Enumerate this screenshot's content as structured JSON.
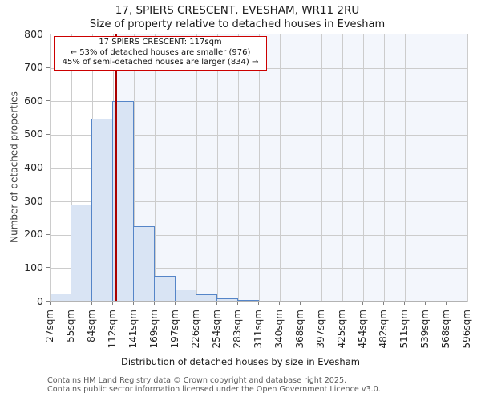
{
  "page": {
    "title": "17, SPIERS CRESCENT, EVESHAM, WR11 2RU",
    "subtitle": "Size of property relative to detached houses in Evesham"
  },
  "annotation": {
    "line1": "17 SPIERS CRESCENT: 117sqm",
    "line2": "← 53% of detached houses are smaller (976)",
    "line3": "45% of semi-detached houses are larger (834) →"
  },
  "chart_data": {
    "type": "bar",
    "title": "17, SPIERS CRESCENT, EVESHAM, WR11 2RU",
    "subtitle": "Size of property relative to detached houses in Evesham",
    "xlabel": "Distribution of detached houses by size in Evesham",
    "ylabel": "Number of detached properties",
    "ylim": [
      0,
      800
    ],
    "ytick_step": 100,
    "grid": true,
    "legend": "none",
    "bin_edges_sqm": [
      27,
      55,
      84,
      112,
      141,
      169,
      197,
      226,
      254,
      283,
      311,
      340,
      368,
      397,
      425,
      454,
      482,
      511,
      539,
      568,
      596
    ],
    "x_tick_labels": [
      "27sqm",
      "55sqm",
      "84sqm",
      "112sqm",
      "141sqm",
      "169sqm",
      "197sqm",
      "226sqm",
      "254sqm",
      "283sqm",
      "311sqm",
      "340sqm",
      "368sqm",
      "397sqm",
      "425sqm",
      "454sqm",
      "482sqm",
      "511sqm",
      "539sqm",
      "568sqm",
      "596sqm"
    ],
    "values": [
      25,
      290,
      548,
      600,
      225,
      78,
      35,
      22,
      9,
      5,
      3,
      0,
      0,
      0,
      0,
      0,
      0,
      0,
      0,
      0
    ],
    "marker_sqm": 117
  },
  "colors": {
    "bar_fill": "#d9e4f4",
    "bar_edge": "#5585c8",
    "marker_line": "#aa0000",
    "annotation_border": "#cc0000",
    "shade_right_of_marker": "#f3f6fc",
    "gridline": "#cccccc"
  },
  "footer": {
    "line1": "Contains HM Land Registry data © Crown copyright and database right 2025.",
    "line2": "Contains public sector information licensed under the Open Government Licence v3.0."
  }
}
